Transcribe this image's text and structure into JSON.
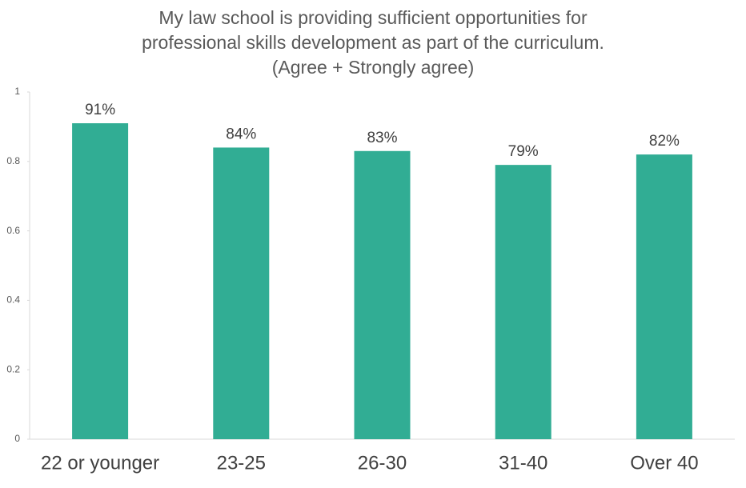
{
  "chart_data": {
    "type": "bar",
    "title": [
      "My law school is providing sufficient opportunities for",
      "professional skills development as part of the curriculum.",
      "(Agree + Strongly agree)"
    ],
    "categories": [
      "22 or younger",
      "23-25",
      "26-30",
      "31-40",
      "Over 40"
    ],
    "values": [
      0.91,
      0.84,
      0.83,
      0.79,
      0.82
    ],
    "value_labels": [
      "91%",
      "84%",
      "83%",
      "79%",
      "82%"
    ],
    "color": "#31ad94",
    "ylim": [
      0,
      1
    ],
    "yticks": [
      0,
      0.2,
      0.4,
      0.6,
      0.8,
      1
    ],
    "grid": false
  }
}
